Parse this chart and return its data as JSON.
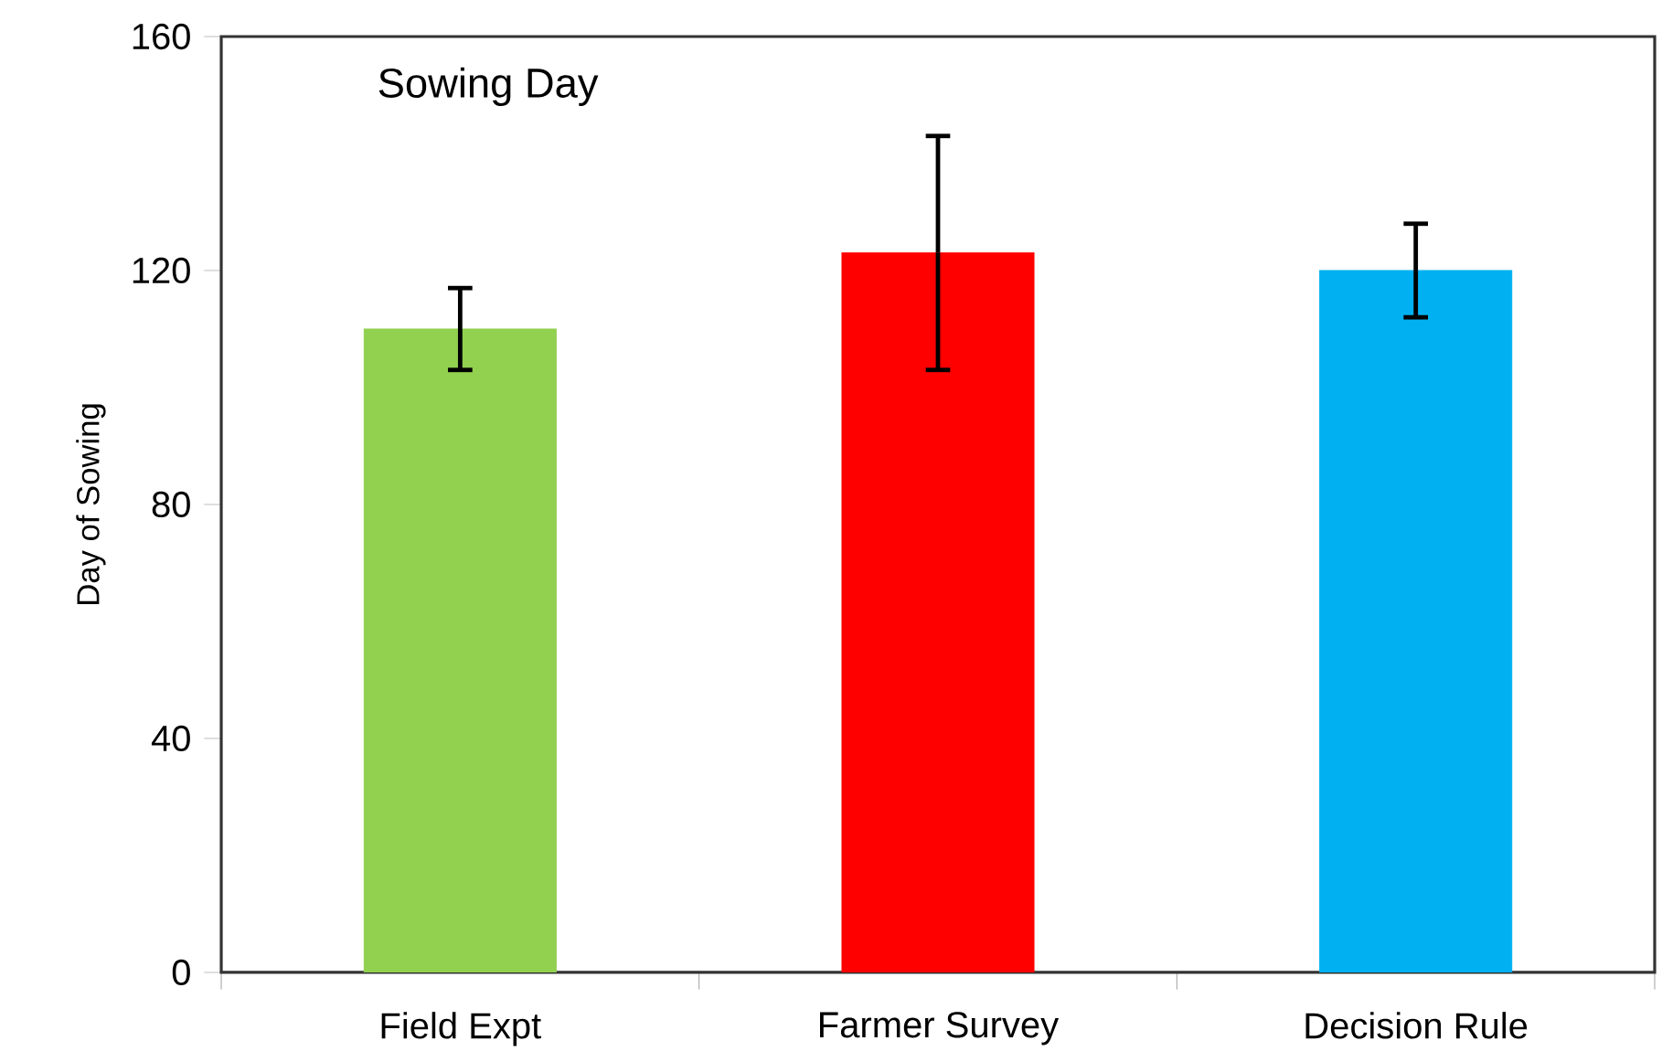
{
  "chart_data": {
    "type": "bar",
    "title": "Sowing Day",
    "ylabel": "Day of Sowing",
    "categories": [
      "Field Expt",
      "Farmer Survey",
      "Decision Rule"
    ],
    "values": [
      110,
      123,
      120
    ],
    "errors": [
      7,
      20,
      8
    ],
    "colors": [
      "#92d050",
      "#ff0000",
      "#00b0f0"
    ],
    "ylim": [
      0,
      160
    ],
    "yticks": [
      0,
      40,
      80,
      120,
      160
    ],
    "grid": false
  }
}
